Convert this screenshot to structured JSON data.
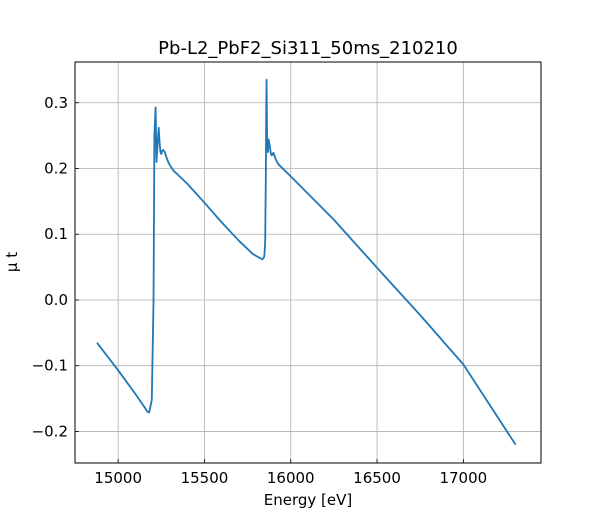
{
  "chart_data": {
    "type": "line",
    "title": "Pb-L2_PbF2_Si311_50ms_210210",
    "xlabel": "Energy [eV]",
    "ylabel": "μ t",
    "xlim": [
      14750,
      17450
    ],
    "ylim": [
      -0.248,
      0.362
    ],
    "xticks": [
      15000,
      15500,
      16000,
      16500,
      17000
    ],
    "yticks": [
      -0.2,
      -0.1,
      0.0,
      0.1,
      0.2,
      0.3
    ],
    "ytick_labels": [
      "−0.2",
      "−0.1",
      "0.0",
      "0.1",
      "0.2",
      "0.3"
    ],
    "grid": true,
    "series": [
      {
        "name": "",
        "color": "#1f77b4",
        "x": [
          14880,
          15000,
          15100,
          15150,
          15170,
          15180,
          15195,
          15205,
          15210,
          15217,
          15222,
          15228,
          15235,
          15240,
          15245,
          15250,
          15255,
          15262,
          15270,
          15280,
          15290,
          15300,
          15320,
          15400,
          15500,
          15600,
          15700,
          15780,
          15820,
          15835,
          15840,
          15845,
          15848,
          15852,
          15856,
          15858,
          15860,
          15863,
          15868,
          15872,
          15880,
          15885,
          15890,
          15900,
          15910,
          15920,
          15930,
          16000,
          16250,
          16500,
          16750,
          17000,
          17300
        ],
        "y": [
          -0.066,
          -0.107,
          -0.143,
          -0.162,
          -0.17,
          -0.171,
          -0.152,
          0.0,
          0.25,
          0.293,
          0.21,
          0.235,
          0.262,
          0.24,
          0.225,
          0.222,
          0.227,
          0.228,
          0.225,
          0.217,
          0.21,
          0.205,
          0.197,
          0.177,
          0.148,
          0.118,
          0.09,
          0.07,
          0.064,
          0.062,
          0.063,
          0.065,
          0.07,
          0.09,
          0.2,
          0.29,
          0.335,
          0.24,
          0.225,
          0.244,
          0.232,
          0.222,
          0.22,
          0.224,
          0.216,
          0.21,
          0.206,
          0.188,
          0.122,
          0.049,
          -0.023,
          -0.098,
          -0.219
        ]
      }
    ]
  }
}
